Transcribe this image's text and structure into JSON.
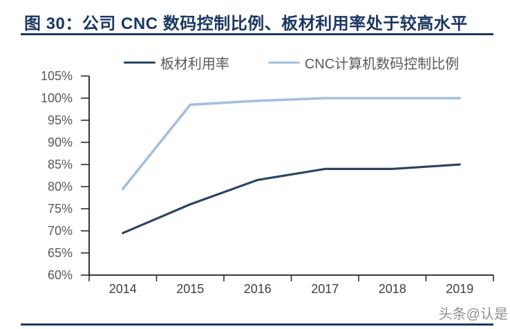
{
  "header": {
    "title": "图 30：公司 CNC 数码控制比例、板材利用率处于较高水平"
  },
  "watermark": "头条@认是",
  "colors": {
    "accent_navy": "#1B3763",
    "series_dark": "#2B455F",
    "series_light": "#A3BFDE",
    "axis_line": "#1f1f1f",
    "y_tick_label": "#595959",
    "x_tick_label": "#3f3f3f",
    "legend_text": "#595959",
    "watermark_gray": "#8f8f8f"
  },
  "chart_data": {
    "type": "line",
    "title": "",
    "categories": [
      "2014",
      "2015",
      "2016",
      "2017",
      "2018",
      "2019"
    ],
    "series": [
      {
        "name": "板材利用率",
        "color_key": "series_dark",
        "values": [
          69.5,
          76,
          81.5,
          84,
          84,
          85
        ]
      },
      {
        "name": "CNC计算机数码控制比例",
        "color_key": "series_light",
        "values": [
          79.5,
          98.5,
          99.4,
          100,
          100,
          100
        ]
      }
    ],
    "xlabel": "",
    "ylabel": "",
    "ylim": [
      60,
      105
    ],
    "ytick_step": 5,
    "ytick_suffix": "%",
    "grid": false,
    "legend_position": "top"
  }
}
